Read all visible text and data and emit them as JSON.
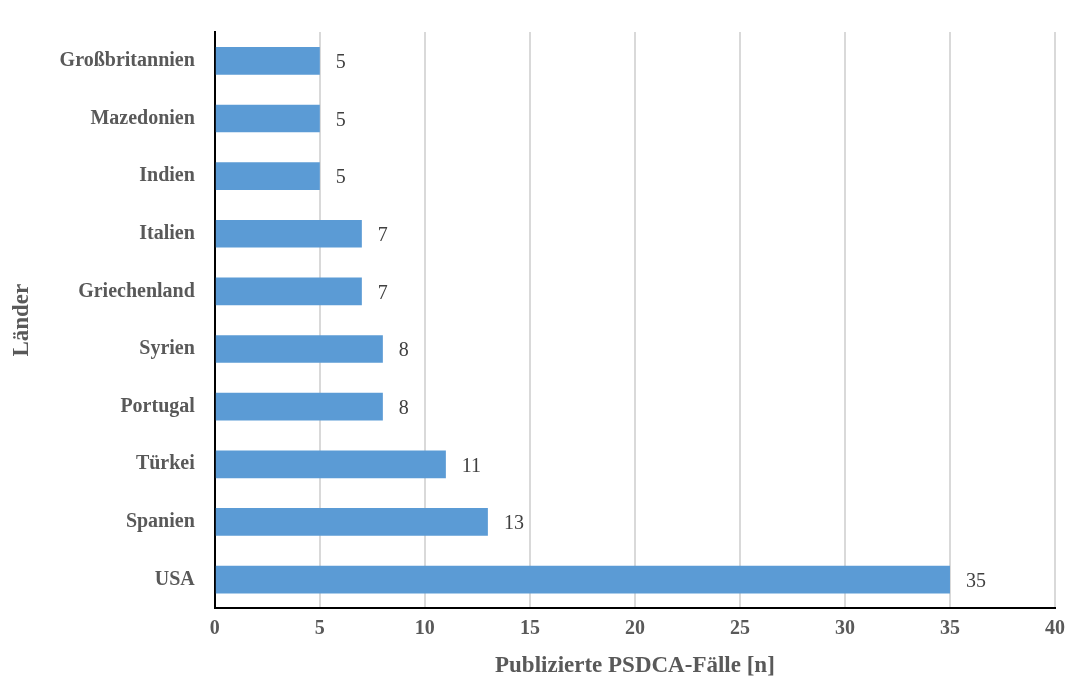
{
  "chart_data": {
    "type": "bar",
    "orientation": "horizontal",
    "xlabel": "Publizierte PSDCA-Fälle [n]",
    "ylabel": "Länder",
    "categories": [
      "Großbritannien",
      "Mazedonien",
      "Indien",
      "Italien",
      "Griechenland",
      "Syrien",
      "Portugal",
      "Türkei",
      "Spanien",
      "USA"
    ],
    "values": [
      5,
      5,
      5,
      7,
      7,
      8,
      8,
      11,
      13,
      35
    ],
    "color": "#5b9bd5",
    "xlim": [
      0,
      40
    ],
    "xticks": [
      0,
      5,
      10,
      15,
      20,
      25,
      30,
      35,
      40
    ],
    "grid": "x",
    "data_labels": true,
    "legend": false
  }
}
